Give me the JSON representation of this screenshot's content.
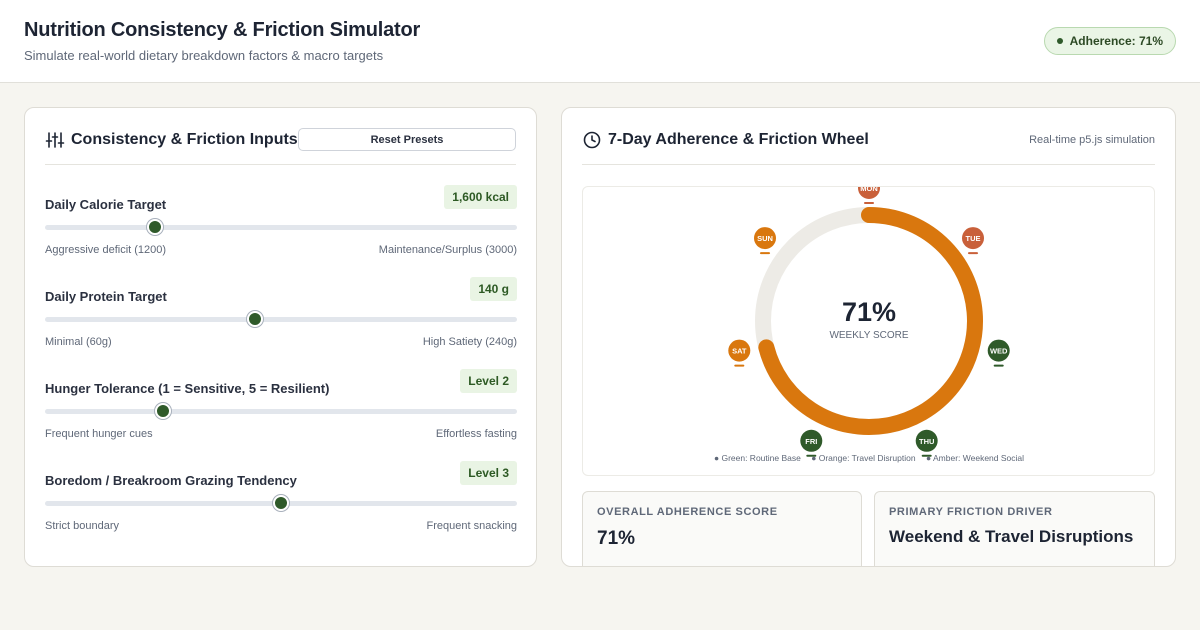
{
  "header": {
    "title": "Nutrition Consistency & Friction Simulator",
    "subtitle": "Simulate real-world dietary breakdown factors & macro targets",
    "badge": "Adherence: 71%"
  },
  "inputs_card": {
    "title": "Consistency & Friction Inputs",
    "reset_label": "Reset Presets",
    "sliders": [
      {
        "label": "Daily Calorie Target",
        "value": "1,600 kcal",
        "min_label": "Aggressive deficit (1200)",
        "max_label": "Maintenance/Surplus (3000)",
        "level": 0.233
      },
      {
        "label": "Daily Protein Target",
        "value": "140 g",
        "min_label": "Minimal (60g)",
        "max_label": "High Satiety (240g)",
        "level": 0.444
      },
      {
        "label": "Hunger Tolerance (1 = Sensitive, 5 = Resilient)",
        "value": "Level 2",
        "min_label": "Frequent hunger cues",
        "max_label": "Effortless fasting",
        "level": 0.25
      },
      {
        "label": "Boredom / Breakroom Grazing Tendency",
        "value": "Level 3",
        "min_label": "Strict boundary",
        "max_label": "Frequent snacking",
        "level": 0.5
      }
    ]
  },
  "wheel_card": {
    "title": "7-Day Adherence & Friction Wheel",
    "note": "Real-time p5.js simulation",
    "score": "71%",
    "score_caption": "WEEKLY SCORE",
    "adherence_fraction": 0.71,
    "days": [
      {
        "label": "MON",
        "status": "amber"
      },
      {
        "label": "TUE",
        "status": "amber"
      },
      {
        "label": "WED",
        "status": "green"
      },
      {
        "label": "THU",
        "status": "green"
      },
      {
        "label": "FRI",
        "status": "green"
      },
      {
        "label": "SAT",
        "status": "orange"
      },
      {
        "label": "SUN",
        "status": "orange"
      }
    ],
    "legend": [
      "● Green: Routine Base",
      "● Orange: Travel Disruption",
      "● Amber: Weekend Social"
    ],
    "colors": {
      "green": "#2f5a2a",
      "orange": "#d9770e",
      "amber": "#c9603a",
      "ring_track": "#edebe6",
      "ring_fill": "#d9770e"
    }
  },
  "stats": {
    "overall_label": "OVERALL ADHERENCE SCORE",
    "overall_value": "71%",
    "driver_label": "PRIMARY FRICTION DRIVER",
    "driver_value": "Weekend & Travel Disruptions"
  }
}
